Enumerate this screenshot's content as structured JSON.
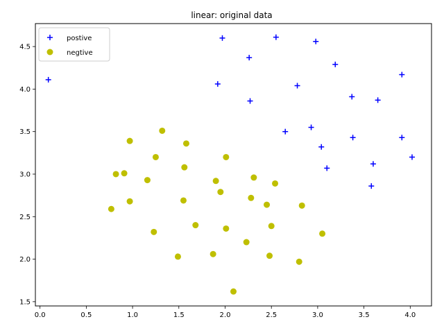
{
  "chart_data": {
    "type": "scatter",
    "title": "linear: original data",
    "xlabel": "",
    "ylabel": "",
    "xlim": [
      -0.05,
      4.23
    ],
    "ylim": [
      1.45,
      4.77
    ],
    "xticks": [
      0.0,
      0.5,
      1.0,
      1.5,
      2.0,
      2.5,
      3.0,
      3.5,
      4.0
    ],
    "xtick_labels": [
      "0.0",
      "0.5",
      "1.0",
      "1.5",
      "2.0",
      "2.5",
      "3.0",
      "3.5",
      "4.0"
    ],
    "yticks": [
      1.5,
      2.0,
      2.5,
      3.0,
      3.5,
      4.0,
      4.5
    ],
    "ytick_labels": [
      "1.5",
      "2.0",
      "2.5",
      "3.0",
      "3.5",
      "4.0",
      "4.5"
    ],
    "grid": false,
    "legend_position": "top-left",
    "series": [
      {
        "name": "postive",
        "marker": "plus",
        "color": "#0000ff",
        "points": [
          [
            0.09,
            4.11
          ],
          [
            1.97,
            4.6
          ],
          [
            2.55,
            4.61
          ],
          [
            2.98,
            4.56
          ],
          [
            2.26,
            4.37
          ],
          [
            3.19,
            4.29
          ],
          [
            3.91,
            4.17
          ],
          [
            1.92,
            4.06
          ],
          [
            2.78,
            4.04
          ],
          [
            3.37,
            3.91
          ],
          [
            2.27,
            3.86
          ],
          [
            3.65,
            3.87
          ],
          [
            2.65,
            3.5
          ],
          [
            2.93,
            3.55
          ],
          [
            3.38,
            3.43
          ],
          [
            3.91,
            3.43
          ],
          [
            3.04,
            3.32
          ],
          [
            4.02,
            3.2
          ],
          [
            3.1,
            3.07
          ],
          [
            3.6,
            3.12
          ],
          [
            3.58,
            2.86
          ]
        ]
      },
      {
        "name": "negtive",
        "marker": "circle",
        "color": "#bfbf00",
        "points": [
          [
            1.32,
            3.51
          ],
          [
            0.97,
            3.39
          ],
          [
            1.58,
            3.36
          ],
          [
            1.25,
            3.2
          ],
          [
            2.01,
            3.2
          ],
          [
            1.56,
            3.08
          ],
          [
            0.82,
            3.0
          ],
          [
            0.91,
            3.01
          ],
          [
            2.31,
            2.96
          ],
          [
            1.16,
            2.93
          ],
          [
            1.9,
            2.92
          ],
          [
            2.54,
            2.89
          ],
          [
            1.95,
            2.79
          ],
          [
            2.28,
            2.72
          ],
          [
            0.97,
            2.68
          ],
          [
            1.55,
            2.69
          ],
          [
            2.45,
            2.64
          ],
          [
            2.83,
            2.63
          ],
          [
            0.77,
            2.59
          ],
          [
            1.68,
            2.4
          ],
          [
            2.5,
            2.39
          ],
          [
            2.01,
            2.36
          ],
          [
            1.23,
            2.32
          ],
          [
            3.05,
            2.3
          ],
          [
            2.23,
            2.2
          ],
          [
            1.87,
            2.06
          ],
          [
            1.49,
            2.03
          ],
          [
            2.48,
            2.04
          ],
          [
            2.8,
            1.97
          ],
          [
            2.09,
            1.62
          ]
        ]
      }
    ]
  }
}
